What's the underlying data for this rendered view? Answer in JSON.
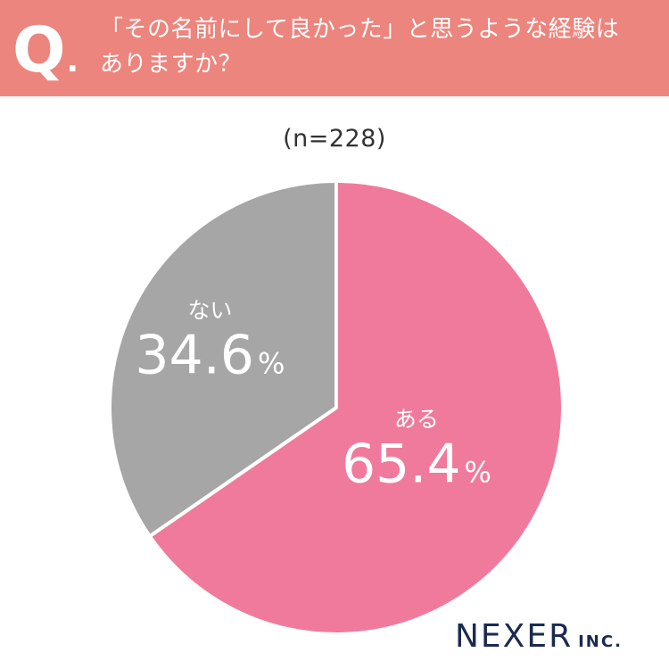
{
  "header": {
    "q_mark": "Q",
    "q_dot": ".",
    "question_line1": "「その名前にして良かった」と思うような経験は",
    "question_line2": "ありますか？",
    "background_color": "#ec857d"
  },
  "sample_label": "(n=228)",
  "chart_data": {
    "type": "pie",
    "start_angle_deg": 0,
    "direction": "clockwise",
    "slices": [
      {
        "label": "ある",
        "value": 65.4,
        "display": "65.4",
        "unit": "%",
        "color": "#f07a9c"
      },
      {
        "label": "ない",
        "value": 34.6,
        "display": "34.6",
        "unit": "%",
        "color": "#a6a6a6"
      }
    ],
    "label_color": "#ffffff"
  },
  "logo": {
    "main": "NEXER",
    "suffix": "INC.",
    "color": "#1b2a4e"
  }
}
